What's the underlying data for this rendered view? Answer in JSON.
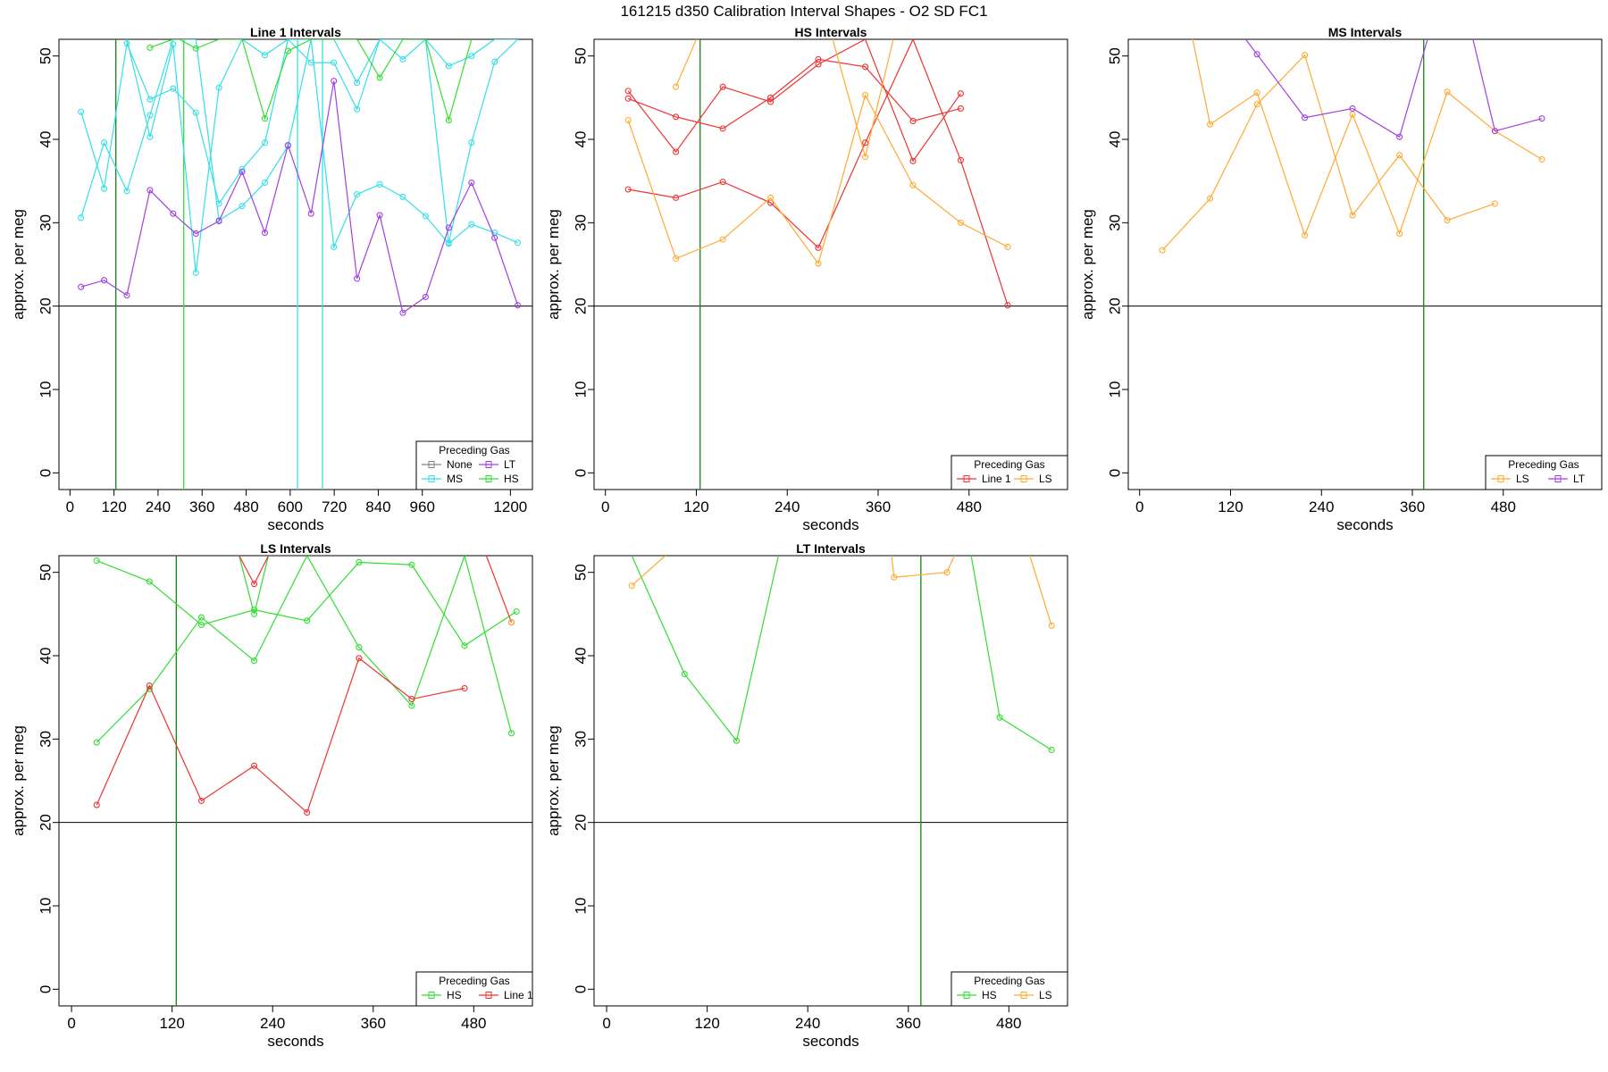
{
  "figure": {
    "title": "161215   d350   Calibration Interval Shapes - O2 SD FC1",
    "colors": {
      "None": "#808080",
      "MS": "#33e0e8",
      "LT": "#a040e0",
      "HS": "#33dd33",
      "Line 1": "#ee3333",
      "LS": "#ffaa33",
      "ref": "#000000",
      "vline": "#118811"
    }
  },
  "chart_data": [
    {
      "id": "line1",
      "type": "line",
      "title": "Line 1 Intervals",
      "xlabel": "seconds",
      "ylabel": "approx. per meg",
      "xlim": [
        -30,
        1260
      ],
      "ylim": [
        -2,
        52
      ],
      "xticks": [
        0,
        120,
        240,
        360,
        480,
        600,
        720,
        840,
        960,
        1200
      ],
      "yticks": [
        0,
        10,
        20,
        30,
        40,
        50
      ],
      "hline": 20,
      "vlines": [
        {
          "x": 125,
          "color": "vline"
        },
        {
          "x": 310,
          "color": "HS"
        },
        {
          "x": 620,
          "color": "MS"
        },
        {
          "x": 688,
          "color": "MS"
        }
      ],
      "legend": {
        "title": "Preceding Gas",
        "entries": [
          "None",
          "LT",
          "MS",
          "HS"
        ],
        "position": "bottom-right"
      },
      "series": [
        {
          "name": "MS",
          "x": [
            30,
            93,
            155,
            218,
            281,
            343,
            406,
            469,
            531,
            594,
            657,
            719,
            782,
            844,
            907,
            969,
            1032,
            1094,
            1157,
            1220
          ],
          "y": [
            30.6,
            39.6,
            33.8,
            42.9,
            52,
            52,
            30.3,
            32,
            34.8,
            39.2,
            52,
            27.1,
            33.4,
            34.6,
            33.1,
            30.8,
            27.5,
            29.8,
            28.8,
            27.6
          ]
        },
        {
          "name": "MS",
          "x": [
            30,
            93,
            155,
            218,
            281,
            343,
            406,
            469,
            531,
            594,
            657,
            719,
            782,
            844,
            907,
            969,
            1032,
            1094,
            1157,
            1220
          ],
          "y": [
            43.3,
            34.1,
            51.5,
            44.8,
            46.1,
            43.2,
            32.3,
            36.4,
            39.6,
            52,
            49.2,
            49.2,
            43.6,
            52,
            49.6,
            52,
            27.6,
            39.6,
            49.3,
            52
          ]
        },
        {
          "name": "MS",
          "x": [
            155,
            218,
            281,
            343,
            406,
            469,
            531,
            594,
            657,
            719,
            782,
            844,
            907,
            969,
            1032,
            1094,
            1157,
            1220
          ],
          "y": [
            52,
            40.3,
            51.4,
            24.0,
            46.2,
            52,
            50.1,
            52,
            52,
            52,
            46.8,
            52,
            52,
            52,
            48.8,
            50.0,
            52,
            52
          ]
        },
        {
          "name": "LT",
          "x": [
            30,
            93,
            155,
            218,
            281,
            343,
            406,
            469,
            531,
            594,
            657,
            719,
            782,
            844,
            907,
            969,
            1032,
            1094,
            1157,
            1220
          ],
          "y": [
            22.3,
            23.1,
            21.3,
            33.9,
            31.1,
            28.7,
            30.2,
            36.1,
            28.8,
            39.3,
            31.1,
            47.0,
            23.3,
            30.9,
            19.2,
            21.1,
            29.4,
            34.8,
            28.2,
            20.1
          ]
        },
        {
          "name": "HS",
          "x": [
            218,
            281,
            298,
            343,
            406,
            469,
            531,
            594,
            657,
            719,
            782,
            844,
            907,
            969,
            1032,
            1094
          ],
          "y": [
            51.0,
            52,
            52,
            50.9,
            52,
            52,
            42.5,
            50.6,
            52,
            52,
            52,
            47.4,
            52,
            52,
            42.3,
            52
          ]
        }
      ]
    },
    {
      "id": "hs",
      "type": "line",
      "title": "HS Intervals",
      "xlabel": "seconds",
      "ylabel": "approx. per meg",
      "xlim": [
        -15,
        610
      ],
      "ylim": [
        -2,
        52
      ],
      "xticks": [
        0,
        120,
        240,
        360,
        480
      ],
      "yticks": [
        0,
        10,
        20,
        30,
        40,
        50
      ],
      "hline": 20,
      "vlines": [
        {
          "x": 125,
          "color": "vline"
        }
      ],
      "legend": {
        "title": "Preceding Gas",
        "entries": [
          "Line 1",
          "LS"
        ],
        "position": "bottom-right"
      },
      "series": [
        {
          "name": "Line 1",
          "x": [
            30,
            93,
            155,
            218,
            281,
            343,
            406,
            469
          ],
          "y": [
            45.8,
            38.5,
            46.3,
            44.5,
            49.0,
            52,
            37.4,
            45.5
          ]
        },
        {
          "name": "Line 1",
          "x": [
            30,
            93,
            155,
            218,
            281,
            343,
            406,
            469
          ],
          "y": [
            44.9,
            42.7,
            41.3,
            45.0,
            49.6,
            48.7,
            42.2,
            43.7
          ]
        },
        {
          "name": "Line 1",
          "x": [
            30,
            93,
            155,
            218,
            281,
            343,
            406,
            469,
            531
          ],
          "y": [
            34.0,
            33.0,
            34.9,
            32.4,
            27.0,
            39.6,
            52,
            37.5,
            20.1
          ]
        },
        {
          "name": "LS",
          "x": [
            30,
            93,
            155,
            218,
            281,
            343,
            406,
            469,
            531
          ],
          "y": [
            42.3,
            25.7,
            28.0,
            33.0,
            25.1,
            45.3,
            34.5,
            30.0,
            27.1
          ]
        },
        {
          "name": "LS",
          "x": [
            93,
            120
          ],
          "y": [
            46.3,
            52
          ]
        },
        {
          "name": "LS",
          "x": [
            300,
            343,
            380
          ],
          "y": [
            52,
            37.9,
            52
          ]
        }
      ]
    },
    {
      "id": "ms",
      "type": "line",
      "title": "MS Intervals",
      "xlabel": "seconds",
      "ylabel": "approx. per meg",
      "xlim": [
        -15,
        610
      ],
      "ylim": [
        -2,
        52
      ],
      "xticks": [
        0,
        120,
        240,
        360,
        480
      ],
      "yticks": [
        0,
        10,
        20,
        30,
        40,
        50
      ],
      "hline": 20,
      "vlines": [
        {
          "x": 375,
          "color": "vline"
        }
      ],
      "legend": {
        "title": "Preceding Gas",
        "entries": [
          "LS",
          "LT"
        ],
        "position": "bottom-right"
      },
      "series": [
        {
          "name": "LS",
          "x": [
            30,
            93,
            155,
            218,
            281,
            343,
            406,
            469
          ],
          "y": [
            26.7,
            32.9,
            44.2,
            50.1,
            30.9,
            38.1,
            30.3,
            32.3
          ]
        },
        {
          "name": "LS",
          "x": [
            70,
            93,
            155,
            218,
            281,
            343,
            406,
            469,
            531
          ],
          "y": [
            52,
            41.8,
            45.6,
            28.5,
            43.0,
            28.7,
            45.7,
            41.0,
            37.6
          ]
        },
        {
          "name": "LT",
          "x": [
            140,
            155,
            218,
            281,
            343,
            380
          ],
          "y": [
            52,
            50.2,
            42.6,
            43.7,
            40.3,
            52
          ]
        },
        {
          "name": "LT",
          "x": [
            440,
            469,
            531
          ],
          "y": [
            52,
            41.0,
            42.5
          ]
        }
      ]
    },
    {
      "id": "ls",
      "type": "line",
      "title": "LS Intervals",
      "xlabel": "seconds",
      "ylabel": "approx. per meg",
      "xlim": [
        -15,
        550
      ],
      "ylim": [
        -2,
        52
      ],
      "xticks": [
        0,
        120,
        240,
        360,
        480
      ],
      "yticks": [
        0,
        10,
        20,
        30,
        40,
        50
      ],
      "hline": 20,
      "vlines": [
        {
          "x": 125,
          "color": "vline"
        }
      ],
      "legend": {
        "title": "Preceding Gas",
        "entries": [
          "HS",
          "Line 1"
        ],
        "position": "bottom-right"
      },
      "series": [
        {
          "name": "HS",
          "x": [
            30,
            93,
            155,
            218,
            281,
            343,
            406,
            469,
            525
          ],
          "y": [
            29.6,
            36.0,
            44.6,
            39.4,
            52,
            41.0,
            34.0,
            52,
            30.7
          ]
        },
        {
          "name": "HS",
          "x": [
            30,
            93,
            155,
            218,
            281,
            343,
            406,
            469,
            531
          ],
          "y": [
            51.4,
            48.9,
            43.7,
            45.5,
            44.2,
            51.2,
            50.9,
            41.2,
            45.3
          ]
        },
        {
          "name": "HS",
          "x": [
            200,
            218,
            235
          ],
          "y": [
            52,
            45.0,
            52
          ]
        },
        {
          "name": "Line 1",
          "x": [
            30,
            93,
            155,
            218,
            281,
            343,
            406,
            469
          ],
          "y": [
            22.1,
            36.4,
            22.6,
            26.8,
            21.2,
            39.7,
            34.8,
            36.1
          ]
        },
        {
          "name": "Line 1",
          "x": [
            200,
            218,
            235
          ],
          "y": [
            52,
            48.6,
            52
          ]
        },
        {
          "name": "Line 1",
          "x": [
            495,
            525
          ],
          "y": [
            52,
            44.0
          ]
        },
        {
          "name": "LS",
          "x": [
            525
          ],
          "y": [
            44.0
          ]
        }
      ]
    },
    {
      "id": "lt",
      "type": "line",
      "title": "LT Intervals",
      "xlabel": "seconds",
      "ylabel": "approx. per meg",
      "xlim": [
        -15,
        550
      ],
      "ylim": [
        -2,
        52
      ],
      "xticks": [
        0,
        120,
        240,
        360,
        480
      ],
      "yticks": [
        0,
        10,
        20,
        30,
        40,
        50
      ],
      "hline": 20,
      "vlines": [
        {
          "x": 375,
          "color": "vline"
        }
      ],
      "legend": {
        "title": "Preceding Gas",
        "entries": [
          "HS",
          "LS"
        ],
        "position": "bottom-right"
      },
      "series": [
        {
          "name": "HS",
          "x": [
            30,
            93,
            155,
            205
          ],
          "y": [
            52,
            37.8,
            29.8,
            52
          ]
        },
        {
          "name": "HS",
          "x": [
            435,
            469,
            531
          ],
          "y": [
            52,
            32.6,
            28.7
          ]
        },
        {
          "name": "LS",
          "x": [
            30,
            70
          ],
          "y": [
            48.4,
            52
          ]
        },
        {
          "name": "LS",
          "x": [
            340,
            343,
            406,
            415
          ],
          "y": [
            52,
            49.4,
            50.0,
            52
          ]
        },
        {
          "name": "LS",
          "x": [
            505,
            531
          ],
          "y": [
            52,
            43.6
          ]
        }
      ]
    }
  ]
}
